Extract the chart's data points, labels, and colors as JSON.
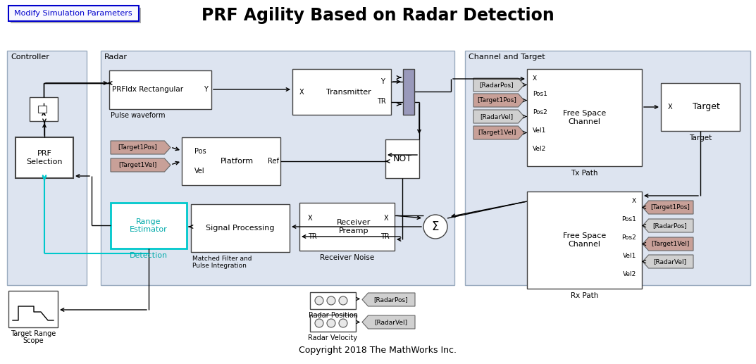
{
  "title": "PRF Agility Based on Radar Detection",
  "bg_color": "#ffffff",
  "panel_bg": "#dde4f0",
  "panel_border": "#9aabbf",
  "block_bg": "#ffffff",
  "block_border": "#444444",
  "from_to_pink": "#c8a098",
  "from_to_gray": "#d0d0d0",
  "cyan_color": "#00c8cc",
  "cyan_text": "#00aaaa",
  "btn_color": "#0000cc",
  "copyright": "Copyright 2018 The MathWorks Inc.",
  "btn_text": "Modify Simulation Parameters"
}
